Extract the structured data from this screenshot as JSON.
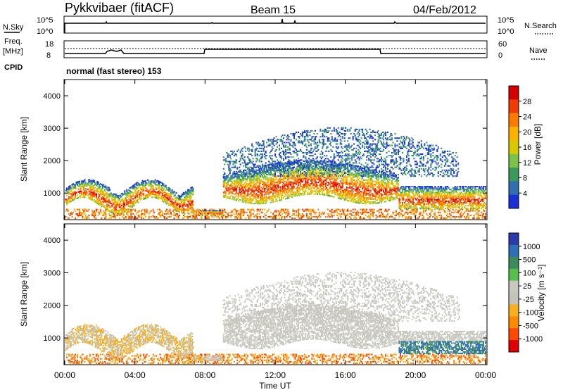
{
  "header": {
    "station": "Pykkvibaer (fitACF)",
    "beam": "Beam 15",
    "date": "04/Feb/2012"
  },
  "noise_panel": {
    "left_label": "N.Sky",
    "right_label": "N.Search",
    "left_ticks": [
      "10^5",
      "10^0"
    ],
    "right_ticks": [
      "10^5",
      "10^0"
    ]
  },
  "freq_panel": {
    "left_label_1": "Freq.",
    "left_label_2": "[MHz]",
    "left_ticks": [
      "18",
      "8"
    ],
    "right_label": "Nave",
    "right_ticks": [
      "60",
      "0"
    ],
    "cpid_label": "CPID",
    "mode_text": "normal (fast stereo) 153"
  },
  "chart_data": [
    {
      "type": "heatmap",
      "title": "",
      "ylabel": "Slant Range [km]",
      "ylim": [
        180,
        4500
      ],
      "y_ticks": [
        1000,
        2000,
        3000,
        4000
      ],
      "xlim_hours": [
        0,
        24
      ],
      "colorbar": {
        "label": "Power [dB]",
        "ticks": [
          "28",
          "24",
          "20",
          "16",
          "12",
          "8",
          "4"
        ],
        "colors": [
          "#d40000",
          "#f03c00",
          "#ff7a00",
          "#ffb000",
          "#d7c800",
          "#7ac24a",
          "#3a9a5c",
          "#2f6fb0",
          "#1b2fd8"
        ]
      }
    },
    {
      "type": "heatmap",
      "title": "",
      "ylabel": "Slant Range [km]",
      "ylim": [
        180,
        4500
      ],
      "y_ticks": [
        1000,
        2000,
        3000,
        4000
      ],
      "xlim_hours": [
        0,
        24
      ],
      "xlabel": "Time UT",
      "x_ticks": [
        "00:00",
        "04:00",
        "08:00",
        "12:00",
        "16:00",
        "20:00",
        "00:00"
      ],
      "colorbar": {
        "label": "Velocity [m s⁻¹]",
        "ticks": [
          "1000",
          "500",
          "100",
          "25",
          "-25",
          "-100",
          "-500",
          "-1000"
        ],
        "colors": [
          "#2a3aa8",
          "#2e6fb8",
          "#3d8a5a",
          "#57c04a",
          "#c8c8c0",
          "#c4c4bc",
          "#f6b020",
          "#ff8c00",
          "#ff4800",
          "#e00000"
        ]
      }
    }
  ]
}
